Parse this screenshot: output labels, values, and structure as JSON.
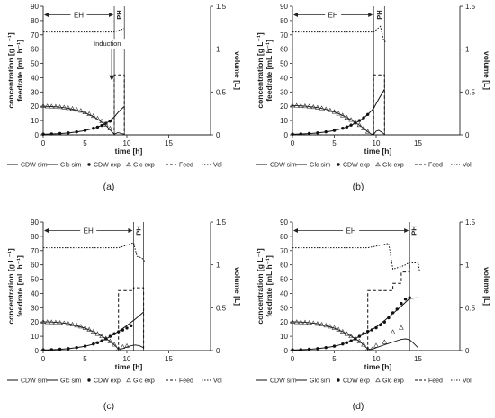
{
  "panel_labels": [
    "(a)",
    "(b)",
    "(c)",
    "(d)"
  ],
  "chart_data": [
    {
      "type": "line",
      "panel": "(a)",
      "xlabel": "time [h]",
      "ylabel_left_line1": "concentration [g L⁻¹]",
      "ylabel_left_line2": "feedrate [mL h⁻¹]",
      "ylabel_right": "volume [L]",
      "xlim": [
        0,
        20
      ],
      "xticks": [
        0,
        5,
        10,
        15
      ],
      "ylim_left": [
        0,
        90
      ],
      "yticks_left": [
        0,
        10,
        20,
        30,
        40,
        50,
        60,
        70,
        80,
        90
      ],
      "ylim_right": [
        0,
        1.5
      ],
      "yticks_right": [
        0,
        0.5,
        1,
        1.5
      ],
      "ytick_labels_right": [
        "0",
        "0.5",
        "1",
        "1.5"
      ],
      "phase_lines": [
        8.5,
        9.7
      ],
      "phases": [
        {
          "label": "EH",
          "from": 0,
          "to": 8.5
        },
        {
          "label": "PH",
          "from": 8.5,
          "to": 9.7
        }
      ],
      "annotation": {
        "text": "Induction",
        "x": 8.2,
        "y_start": 66,
        "y_end": 53
      },
      "legend": [
        "CDW sim",
        "Glc sim",
        "CDW exp",
        "Glc exp",
        "Feed",
        "Vol"
      ],
      "series": [
        {
          "name": "CDW sim",
          "style": "solid",
          "axis": "left",
          "x": [
            0,
            1,
            2,
            3,
            4,
            5,
            6,
            7,
            7.5,
            8,
            8.5,
            9,
            9.7
          ],
          "y": [
            0.4,
            0.6,
            0.9,
            1.3,
            2.0,
            3.0,
            4.5,
            6.5,
            8.0,
            10.0,
            12.5,
            16.0,
            20.0
          ]
        },
        {
          "name": "Glc sim",
          "style": "solid",
          "axis": "left",
          "x": [
            0,
            1,
            2,
            3,
            4,
            5,
            6,
            7,
            7.5,
            8,
            8.3,
            8.5,
            8.7,
            8.9,
            9.1,
            9.4,
            9.7
          ],
          "y": [
            20,
            19.8,
            19.4,
            18.6,
            17.3,
            15.5,
            12.8,
            9.0,
            6.5,
            3.5,
            1.5,
            0.5,
            1.0,
            1.5,
            1.4,
            0.8,
            0.5
          ]
        },
        {
          "name": "CDW exp",
          "style": "markers",
          "marker": "filled-circle",
          "axis": "left",
          "x": [
            0,
            1,
            2,
            3,
            4,
            5,
            6,
            6.5,
            7,
            7.5,
            8
          ],
          "y": [
            0.5,
            0.7,
            1.0,
            1.4,
            2.1,
            3.1,
            4.6,
            5.4,
            6.6,
            8.1,
            9.6
          ]
        },
        {
          "name": "Glc exp",
          "style": "markers",
          "marker": "open-triangle",
          "axis": "left",
          "x": [
            0,
            0.5,
            1,
            1.5,
            2,
            2.5,
            3,
            3.5,
            4,
            4.5,
            5,
            5.5,
            6,
            6.5,
            7,
            7.5,
            8
          ],
          "y": [
            20.2,
            20,
            19.9,
            19.7,
            19.5,
            19.2,
            18.8,
            18.3,
            17.6,
            16.9,
            15.8,
            14.6,
            13.2,
            11.4,
            9.6,
            7.2,
            4.5
          ]
        },
        {
          "name": "Feed",
          "style": "dashed",
          "axis": "left",
          "x": [
            0,
            8.5,
            8.5,
            9.7,
            9.7
          ],
          "y": [
            0,
            0,
            42,
            42,
            0
          ]
        },
        {
          "name": "Vol",
          "style": "dotted",
          "axis": "right",
          "x": [
            0,
            8.5,
            9.7
          ],
          "y": [
            1.2,
            1.2,
            1.24
          ]
        }
      ]
    },
    {
      "type": "line",
      "panel": "(b)",
      "xlabel": "time [h]",
      "ylabel_left_line1": "concentration [g L⁻¹]",
      "ylabel_left_line2": "feedrate [mL h⁻¹]",
      "ylabel_right": "volume [L]",
      "xlim": [
        0,
        20
      ],
      "xticks": [
        0,
        5,
        10,
        15
      ],
      "ylim_left": [
        0,
        90
      ],
      "yticks_left": [
        0,
        10,
        20,
        30,
        40,
        50,
        60,
        70,
        80,
        90
      ],
      "ylim_right": [
        0,
        1.5
      ],
      "yticks_right": [
        0,
        0.5,
        1,
        1.5
      ],
      "ytick_labels_right": [
        "0",
        "0.5",
        "1",
        "1.5"
      ],
      "phase_lines": [
        9.7,
        11
      ],
      "phases": [
        {
          "label": "EH",
          "from": 0,
          "to": 9.7
        },
        {
          "label": "PH",
          "from": 9.7,
          "to": 11
        }
      ],
      "legend": [
        "CDW sim",
        "Glc sim",
        "CDW exp",
        "Glc exp",
        "Feed",
        "Vol"
      ],
      "series": [
        {
          "name": "CDW sim",
          "style": "solid",
          "axis": "left",
          "x": [
            0,
            1,
            2,
            3,
            4,
            5,
            6,
            7,
            8,
            8.5,
            9,
            9.7,
            10.3,
            11
          ],
          "y": [
            0.4,
            0.6,
            0.9,
            1.3,
            2.0,
            3.0,
            4.5,
            6.7,
            9.8,
            11.8,
            14.2,
            18.5,
            25.0,
            32.0
          ]
        },
        {
          "name": "Glc sim",
          "style": "solid",
          "axis": "left",
          "x": [
            0,
            1,
            2,
            3,
            4,
            5,
            6,
            7,
            8,
            8.5,
            9,
            9.4,
            9.7,
            10,
            10.3,
            10.6,
            11
          ],
          "y": [
            20.5,
            20.3,
            19.9,
            19.1,
            17.8,
            16.0,
            13.6,
            10.5,
            6.8,
            4.6,
            2.2,
            0.6,
            0.2,
            2.5,
            3.2,
            2.0,
            0.5
          ]
        },
        {
          "name": "CDW exp",
          "style": "markers",
          "marker": "filled-circle",
          "axis": "left",
          "x": [
            0,
            1,
            2,
            3,
            4,
            5,
            6,
            6.5,
            7,
            7.5,
            8,
            8.5,
            9
          ],
          "y": [
            0.5,
            0.7,
            1.0,
            1.4,
            2.1,
            3.1,
            4.6,
            5.5,
            6.8,
            8.3,
            10.0,
            11.9,
            14.3
          ]
        },
        {
          "name": "Glc exp",
          "style": "markers",
          "marker": "open-triangle",
          "axis": "left",
          "x": [
            0,
            0.5,
            1,
            1.5,
            2,
            2.5,
            3,
            3.5,
            4,
            4.5,
            5,
            5.5,
            6,
            6.5,
            7,
            7.5,
            8,
            8.5,
            9
          ],
          "y": [
            20.6,
            20.4,
            20.3,
            20.1,
            19.9,
            19.5,
            19.1,
            18.6,
            17.9,
            17.1,
            16.1,
            14.9,
            13.6,
            12.0,
            10.5,
            8.8,
            6.9,
            4.5,
            2.3
          ]
        },
        {
          "name": "Feed",
          "style": "dashed",
          "axis": "left",
          "x": [
            0,
            9.7,
            9.7,
            11,
            11
          ],
          "y": [
            0,
            0,
            42,
            42,
            0
          ]
        },
        {
          "name": "Vol",
          "style": "dotted",
          "axis": "right",
          "x": [
            0,
            9.7,
            10.5,
            10.9,
            11.2
          ],
          "y": [
            1.2,
            1.2,
            1.265,
            1.1,
            1.08
          ]
        }
      ]
    },
    {
      "type": "line",
      "panel": "(c)",
      "xlabel": "time [h]",
      "ylabel_left_line1": "concentration [g L⁻¹]",
      "ylabel_left_line2": "feedrate [mL h⁻¹]",
      "ylabel_right": "volume [L]",
      "xlim": [
        0,
        20
      ],
      "xticks": [
        0,
        5,
        10,
        15
      ],
      "ylim_left": [
        0,
        90
      ],
      "yticks_left": [
        0,
        10,
        20,
        30,
        40,
        50,
        60,
        70,
        80,
        90
      ],
      "ylim_right": [
        0,
        1.5
      ],
      "yticks_right": [
        0,
        0.5,
        1,
        1.5
      ],
      "ytick_labels_right": [
        "0",
        "0.5",
        "1",
        "1.5"
      ],
      "phase_lines": [
        10.8,
        12
      ],
      "phases": [
        {
          "label": "EH",
          "from": 0,
          "to": 10.8
        },
        {
          "label": "PH",
          "from": 10.8,
          "to": 12
        }
      ],
      "legend": [
        "CDW sim",
        "Glc sim",
        "CDW exp",
        "Glc exp",
        "Feed",
        "Vol"
      ],
      "series": [
        {
          "name": "CDW sim",
          "style": "solid",
          "axis": "left",
          "x": [
            0,
            1,
            2,
            3,
            4,
            5,
            6,
            7,
            8,
            8.5,
            9,
            10,
            11,
            12
          ],
          "y": [
            0.4,
            0.6,
            0.9,
            1.3,
            2.0,
            3.0,
            4.5,
            6.7,
            9.8,
            11.6,
            13.5,
            17.5,
            22.0,
            27.0
          ]
        },
        {
          "name": "Glc sim",
          "style": "solid",
          "axis": "left",
          "x": [
            0,
            1,
            2,
            3,
            4,
            5,
            6,
            7,
            8,
            8.5,
            9,
            9.5,
            10,
            10.5,
            11,
            11.5,
            12
          ],
          "y": [
            20.2,
            20.0,
            19.6,
            18.8,
            17.5,
            15.7,
            13.3,
            10.2,
            6.5,
            4.0,
            1.0,
            1.3,
            2.5,
            3.4,
            3.9,
            3.4,
            2.0
          ]
        },
        {
          "name": "CDW exp",
          "style": "markers",
          "marker": "filled-circle",
          "axis": "left",
          "x": [
            0,
            1,
            2,
            3,
            4,
            5,
            6,
            6.5,
            7,
            7.5,
            8,
            8.5,
            9,
            9.5,
            10,
            10.5
          ],
          "y": [
            0.5,
            0.7,
            1.0,
            1.4,
            2.1,
            3.1,
            4.6,
            5.5,
            6.8,
            8.3,
            10.0,
            11.8,
            13.2,
            14.4,
            15.8,
            17.4
          ]
        },
        {
          "name": "Glc exp",
          "style": "markers",
          "marker": "open-triangle",
          "axis": "left",
          "x": [
            0,
            0.5,
            1,
            1.5,
            2,
            2.5,
            3,
            3.5,
            4,
            4.5,
            5,
            5.5,
            6,
            6.5,
            7,
            7.5,
            8,
            8.5,
            9,
            9.5,
            10
          ],
          "y": [
            20.2,
            20.0,
            19.9,
            19.7,
            19.5,
            19.2,
            18.8,
            18.3,
            17.6,
            16.9,
            15.9,
            14.7,
            13.3,
            11.7,
            10.1,
            8.5,
            6.5,
            4.2,
            1.2,
            2.6,
            3.2
          ]
        },
        {
          "name": "Feed",
          "style": "dashed",
          "axis": "left",
          "x": [
            0,
            9,
            9,
            10.8,
            10.8,
            12,
            12
          ],
          "y": [
            0,
            0,
            42,
            42,
            44,
            44,
            0
          ]
        },
        {
          "name": "Vol",
          "style": "dotted",
          "axis": "right",
          "x": [
            0,
            9,
            10,
            10.8,
            11.2,
            11.8,
            12.2
          ],
          "y": [
            1.2,
            1.2,
            1.23,
            1.26,
            1.1,
            1.08,
            1.03
          ]
        }
      ]
    },
    {
      "type": "line",
      "panel": "(d)",
      "xlabel": "time [h]",
      "ylabel_left_line1": "concentration [g L⁻¹]",
      "ylabel_left_line2": "feedrate [mL h⁻¹]",
      "ylabel_right": "volume [L]",
      "xlim": [
        0,
        20
      ],
      "xticks": [
        0,
        5,
        10,
        15
      ],
      "ylim_left": [
        0,
        90
      ],
      "yticks_left": [
        0,
        10,
        20,
        30,
        40,
        50,
        60,
        70,
        80,
        90
      ],
      "ylim_right": [
        0,
        1.5
      ],
      "yticks_right": [
        0,
        0.5,
        1,
        1.5
      ],
      "ytick_labels_right": [
        "0",
        "0.5",
        "1",
        "1.5"
      ],
      "phase_lines": [
        14,
        15
      ],
      "phases": [
        {
          "label": "EH",
          "from": 0,
          "to": 14
        },
        {
          "label": "PH",
          "from": 14,
          "to": 15
        }
      ],
      "legend": [
        "CDW sim",
        "Glc sim",
        "CDW exp",
        "Glc exp",
        "Feed",
        "Vol"
      ],
      "series": [
        {
          "name": "CDW sim",
          "style": "solid",
          "axis": "left",
          "x": [
            0,
            1,
            2,
            3,
            4,
            5,
            6,
            7,
            8,
            9,
            10,
            11,
            12,
            13,
            14,
            15
          ],
          "y": [
            0.4,
            0.6,
            0.9,
            1.3,
            2.0,
            3.0,
            4.5,
            6.8,
            10.0,
            13.0,
            16.5,
            21.0,
            26.0,
            31.0,
            36.5,
            37.0
          ]
        },
        {
          "name": "Glc sim",
          "style": "solid",
          "axis": "left",
          "x": [
            0,
            1,
            2,
            3,
            4,
            5,
            6,
            7,
            8,
            8.5,
            9,
            9.5,
            10,
            11,
            12,
            13,
            13.5,
            14,
            14.5,
            15
          ],
          "y": [
            20.2,
            20.0,
            19.6,
            18.8,
            17.5,
            15.7,
            13.3,
            10.2,
            6.5,
            4.0,
            1.0,
            0.8,
            2.0,
            4.0,
            6.0,
            7.8,
            8.2,
            7.6,
            5.0,
            2.0
          ]
        },
        {
          "name": "CDW exp",
          "style": "markers",
          "marker": "filled-circle",
          "axis": "left",
          "x": [
            0,
            1,
            2,
            3,
            4,
            5,
            6,
            6.5,
            7,
            7.5,
            8,
            8.5,
            9,
            9.5,
            10,
            10.5,
            11,
            11.5,
            12,
            12.5,
            13,
            13.5,
            14
          ],
          "y": [
            0.5,
            0.7,
            1.0,
            1.4,
            2.1,
            3.1,
            4.6,
            5.5,
            6.8,
            8.3,
            10.0,
            12.0,
            13.5,
            14.5,
            16.0,
            18.0,
            20.0,
            23.0,
            26.5,
            29.0,
            33.0,
            36.0,
            37.0
          ]
        },
        {
          "name": "Glc exp",
          "style": "markers",
          "marker": "open-triangle",
          "axis": "left",
          "x": [
            0,
            0.5,
            1,
            1.5,
            2,
            2.5,
            3,
            3.5,
            4,
            4.5,
            5,
            5.5,
            6,
            6.5,
            7,
            7.5,
            8,
            8.5,
            9,
            9.5,
            10,
            11,
            12,
            13
          ],
          "y": [
            20.2,
            20.0,
            19.9,
            19.7,
            19.5,
            19.2,
            18.8,
            18.3,
            17.6,
            16.9,
            15.9,
            14.7,
            13.3,
            11.7,
            10.1,
            8.5,
            6.5,
            4.2,
            1.2,
            0.8,
            3.5,
            6.0,
            13.0,
            16.0
          ]
        },
        {
          "name": "Feed",
          "style": "dashed",
          "axis": "left",
          "x": [
            0,
            9,
            9,
            12,
            12,
            13,
            13,
            14,
            14,
            15,
            15
          ],
          "y": [
            0,
            0,
            42,
            42,
            47,
            47,
            55,
            55,
            62,
            62,
            0
          ]
        },
        {
          "name": "Vol",
          "style": "dotted",
          "axis": "right",
          "x": [
            0,
            9,
            10,
            11.5,
            12,
            13,
            13.5,
            14,
            14.5,
            15,
            15.2
          ],
          "y": [
            1.2,
            1.2,
            1.22,
            1.25,
            0.95,
            0.98,
            1.0,
            1.03,
            1.02,
            1.03,
            0.92
          ]
        }
      ]
    }
  ]
}
